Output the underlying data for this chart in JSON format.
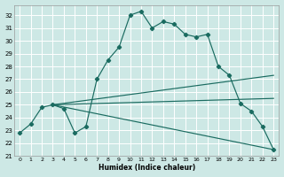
{
  "xlabel": "Humidex (Indice chaleur)",
  "xlim": [
    -0.5,
    23.5
  ],
  "ylim": [
    21,
    32.8
  ],
  "yticks": [
    21,
    22,
    23,
    24,
    25,
    26,
    27,
    28,
    29,
    30,
    31,
    32
  ],
  "xticks": [
    0,
    1,
    2,
    3,
    4,
    5,
    6,
    7,
    8,
    9,
    10,
    11,
    12,
    13,
    14,
    15,
    16,
    17,
    18,
    19,
    20,
    21,
    22,
    23
  ],
  "bg_color": "#cde8e5",
  "grid_color": "#ffffff",
  "line_color": "#1a6b60",
  "curve_x": [
    0,
    1,
    2,
    3,
    4,
    5,
    6,
    7,
    8,
    9,
    10,
    11,
    12,
    13,
    14,
    15,
    16,
    17,
    18,
    19,
    20,
    21,
    22,
    23
  ],
  "curve_y": [
    22.8,
    23.5,
    24.8,
    25.0,
    24.7,
    22.8,
    23.3,
    27.0,
    28.5,
    29.5,
    32.0,
    32.3,
    31.0,
    31.5,
    31.3,
    30.5,
    30.3,
    30.5,
    28.0,
    27.3,
    25.1,
    24.5,
    23.3,
    21.5
  ],
  "straight_lines": [
    {
      "x0": 3,
      "y0": 25.0,
      "x1": 23,
      "y1": 27.3
    },
    {
      "x0": 3,
      "y0": 25.0,
      "x1": 23,
      "y1": 25.5
    },
    {
      "x0": 3,
      "y0": 25.0,
      "x1": 23,
      "y1": 21.5
    }
  ]
}
